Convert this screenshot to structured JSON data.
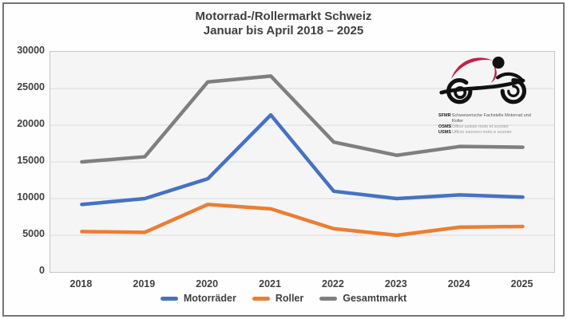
{
  "chart": {
    "title_line1": "Motorrad-/Rollermarkt Schweiz",
    "title_line2": "Januar bis April 2018 – 2025"
  },
  "chart_data": {
    "type": "line",
    "title": "Motorrad-/Rollermarkt Schweiz Januar bis April 2018 – 2025",
    "categories": [
      "2018",
      "2019",
      "2020",
      "2021",
      "2022",
      "2023",
      "2024",
      "2025"
    ],
    "series": [
      {
        "name": "Motorräder",
        "color": "#4472C4",
        "values": [
          9200,
          10000,
          12700,
          21400,
          11000,
          10000,
          10500,
          10200
        ]
      },
      {
        "name": "Roller",
        "color": "#ED7D31",
        "values": [
          5500,
          5400,
          9200,
          8600,
          5900,
          5000,
          6100,
          6200
        ]
      },
      {
        "name": "Gesamtmarkt",
        "color": "#7F7F7F",
        "values": [
          15000,
          15700,
          25900,
          26700,
          17700,
          15900,
          17100,
          17000
        ]
      }
    ],
    "xlabel": "",
    "ylabel": "",
    "ylim": [
      0,
      30000
    ],
    "ytick_step": 5000,
    "grid": true,
    "legend_position": "bottom"
  },
  "logo": {
    "accent_color": "#C51F45",
    "lines": [
      {
        "abbr": "SFMR",
        "text": "Schweizerische Fachstelle Motorrad und Roller"
      },
      {
        "abbr": "OSMS",
        "text": "Office suisse moto et scooter"
      },
      {
        "abbr": "USMS",
        "text": "Ufficio svizzero moto e scooter"
      }
    ]
  }
}
